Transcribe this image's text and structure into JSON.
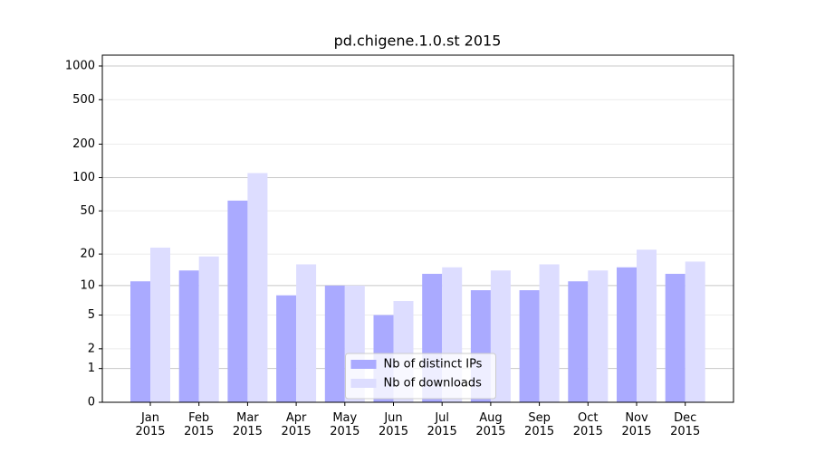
{
  "chart_data": {
    "type": "bar",
    "title": "pd.chigene.1.0.st 2015",
    "categories": [
      "Jan 2015",
      "Feb 2015",
      "Mar 2015",
      "Apr 2015",
      "May 2015",
      "Jun 2015",
      "Jul 2015",
      "Aug 2015",
      "Sep 2015",
      "Oct 2015",
      "Nov 2015",
      "Dec 2015"
    ],
    "series": [
      {
        "name": "Nb of distinct IPs",
        "color": "#aaaaff",
        "values": [
          11,
          14,
          62,
          8,
          10,
          5,
          13,
          9,
          9,
          11,
          15,
          13
        ]
      },
      {
        "name": "Nb of downloads",
        "color": "#ddddff",
        "values": [
          23,
          19,
          110,
          16,
          10,
          7,
          15,
          14,
          16,
          14,
          22,
          17
        ]
      }
    ],
    "yscale": "log1p",
    "ylim": [
      0,
      1250
    ],
    "yticks": [
      0,
      1,
      2,
      5,
      10,
      20,
      50,
      100,
      200,
      500,
      1000
    ],
    "grid": true,
    "legend": "lower center"
  }
}
